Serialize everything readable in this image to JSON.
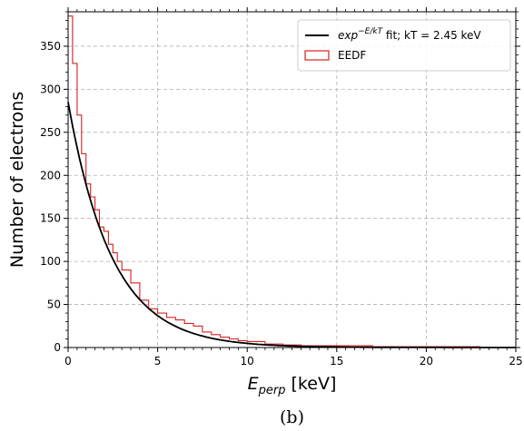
{
  "chart_data": {
    "type": "line",
    "xlabel_main": "E",
    "xlabel_sub": "perp",
    "xlabel_unit": " [keV]",
    "ylabel": "Number of electrons",
    "xlim": [
      0,
      25
    ],
    "ylim": [
      0,
      390
    ],
    "xticks": [
      0,
      5,
      10,
      15,
      20,
      25
    ],
    "yticks": [
      0,
      50,
      100,
      150,
      200,
      250,
      300,
      350
    ],
    "grid": true,
    "legend_position": "top-right",
    "caption": "(b)",
    "colors": {
      "fit": "#000000",
      "eedf": "#d62020"
    },
    "series": [
      {
        "name": "fit",
        "legend_label": "exp",
        "legend_sup": "−E/kT",
        "legend_rest": " fit; kT = 2.45 keV",
        "kind": "line",
        "amplitude": 285,
        "kT": 2.45
      },
      {
        "name": "EEDF",
        "legend_label": "EEDF",
        "kind": "histogram",
        "x": [
          0,
          0.25,
          0.5,
          0.75,
          1.0,
          1.25,
          1.5,
          1.75,
          2.0,
          2.25,
          2.5,
          2.75,
          3.0,
          3.5,
          4.0,
          4.5,
          5.0,
          5.5,
          6.0,
          6.5,
          7.0,
          7.5,
          8.0,
          8.5,
          9.0,
          9.5,
          10.0,
          11.0,
          12.0,
          13.0,
          14.0,
          15.0,
          16.0,
          17.0,
          18.0,
          19.0,
          20.0,
          21.0,
          22.0,
          23.0,
          24.0,
          25.0
        ],
        "y": [
          385,
          330,
          270,
          225,
          190,
          175,
          160,
          140,
          135,
          120,
          110,
          100,
          90,
          75,
          55,
          45,
          40,
          35,
          32,
          28,
          25,
          18,
          15,
          12,
          10,
          8,
          7,
          4,
          3,
          2,
          2,
          2,
          2,
          1,
          1,
          1,
          1,
          1,
          1,
          0,
          0,
          0
        ]
      }
    ]
  }
}
